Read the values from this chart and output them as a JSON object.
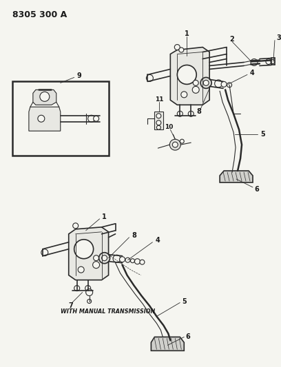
{
  "title": "8305 300 A",
  "bg": "#f5f5f0",
  "lc": "#2a2a2a",
  "tc": "#1a1a1a",
  "figsize": [
    4.08,
    5.33
  ],
  "dpi": 100,
  "manual_label": "WITH MANUAL TRANSMISSION"
}
